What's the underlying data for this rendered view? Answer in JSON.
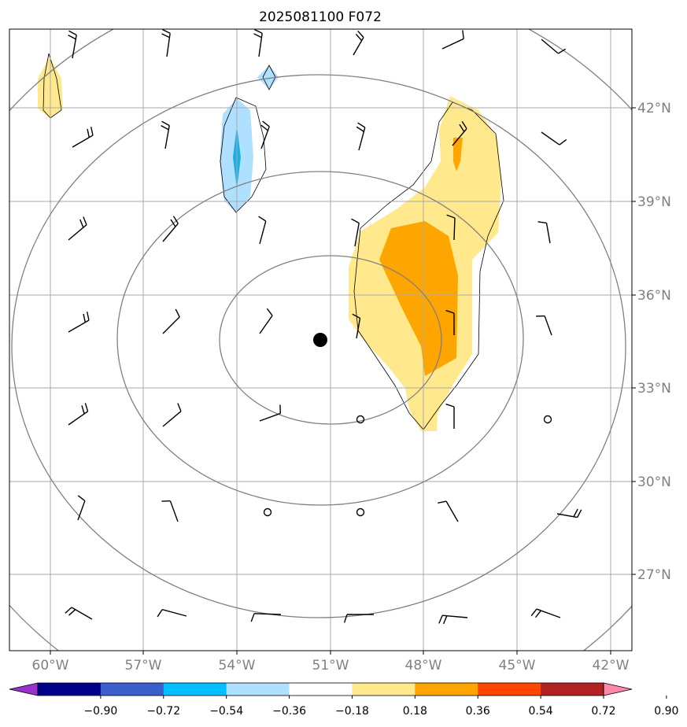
{
  "title": "2025081100 F072",
  "lon_labels": [
    "60°W",
    "57°W",
    "54°W",
    "51°W",
    "48°W",
    "45°W",
    "42°W"
  ],
  "lat_labels": [
    "42°N",
    "39°N",
    "36°N",
    "33°N",
    "30°N",
    "27°N"
  ],
  "colorbar": {
    "tick_labels": [
      "−0.90",
      "−0.72",
      "−0.54",
      "−0.36",
      "−0.18",
      "0.18",
      "0.36",
      "0.54",
      "0.72",
      "0.90"
    ],
    "colors": [
      "#9932cc",
      "#00008b",
      "#3a5fcd",
      "#00bfff",
      "#b0e0ff",
      "#ffffff",
      "#ffe98c",
      "#ffa500",
      "#ff4500",
      "#b22222",
      "#ff88aa"
    ]
  },
  "colors": {
    "grid": "#a9a9a9",
    "contour": "#808080",
    "barb": "#000000",
    "positive_light": "#ffe98c",
    "positive_mid": "#ffa500",
    "negative_light": "#b0e0ff",
    "negative_mid": "#1ab0e6"
  },
  "center_marker": "storm-center-dot"
}
